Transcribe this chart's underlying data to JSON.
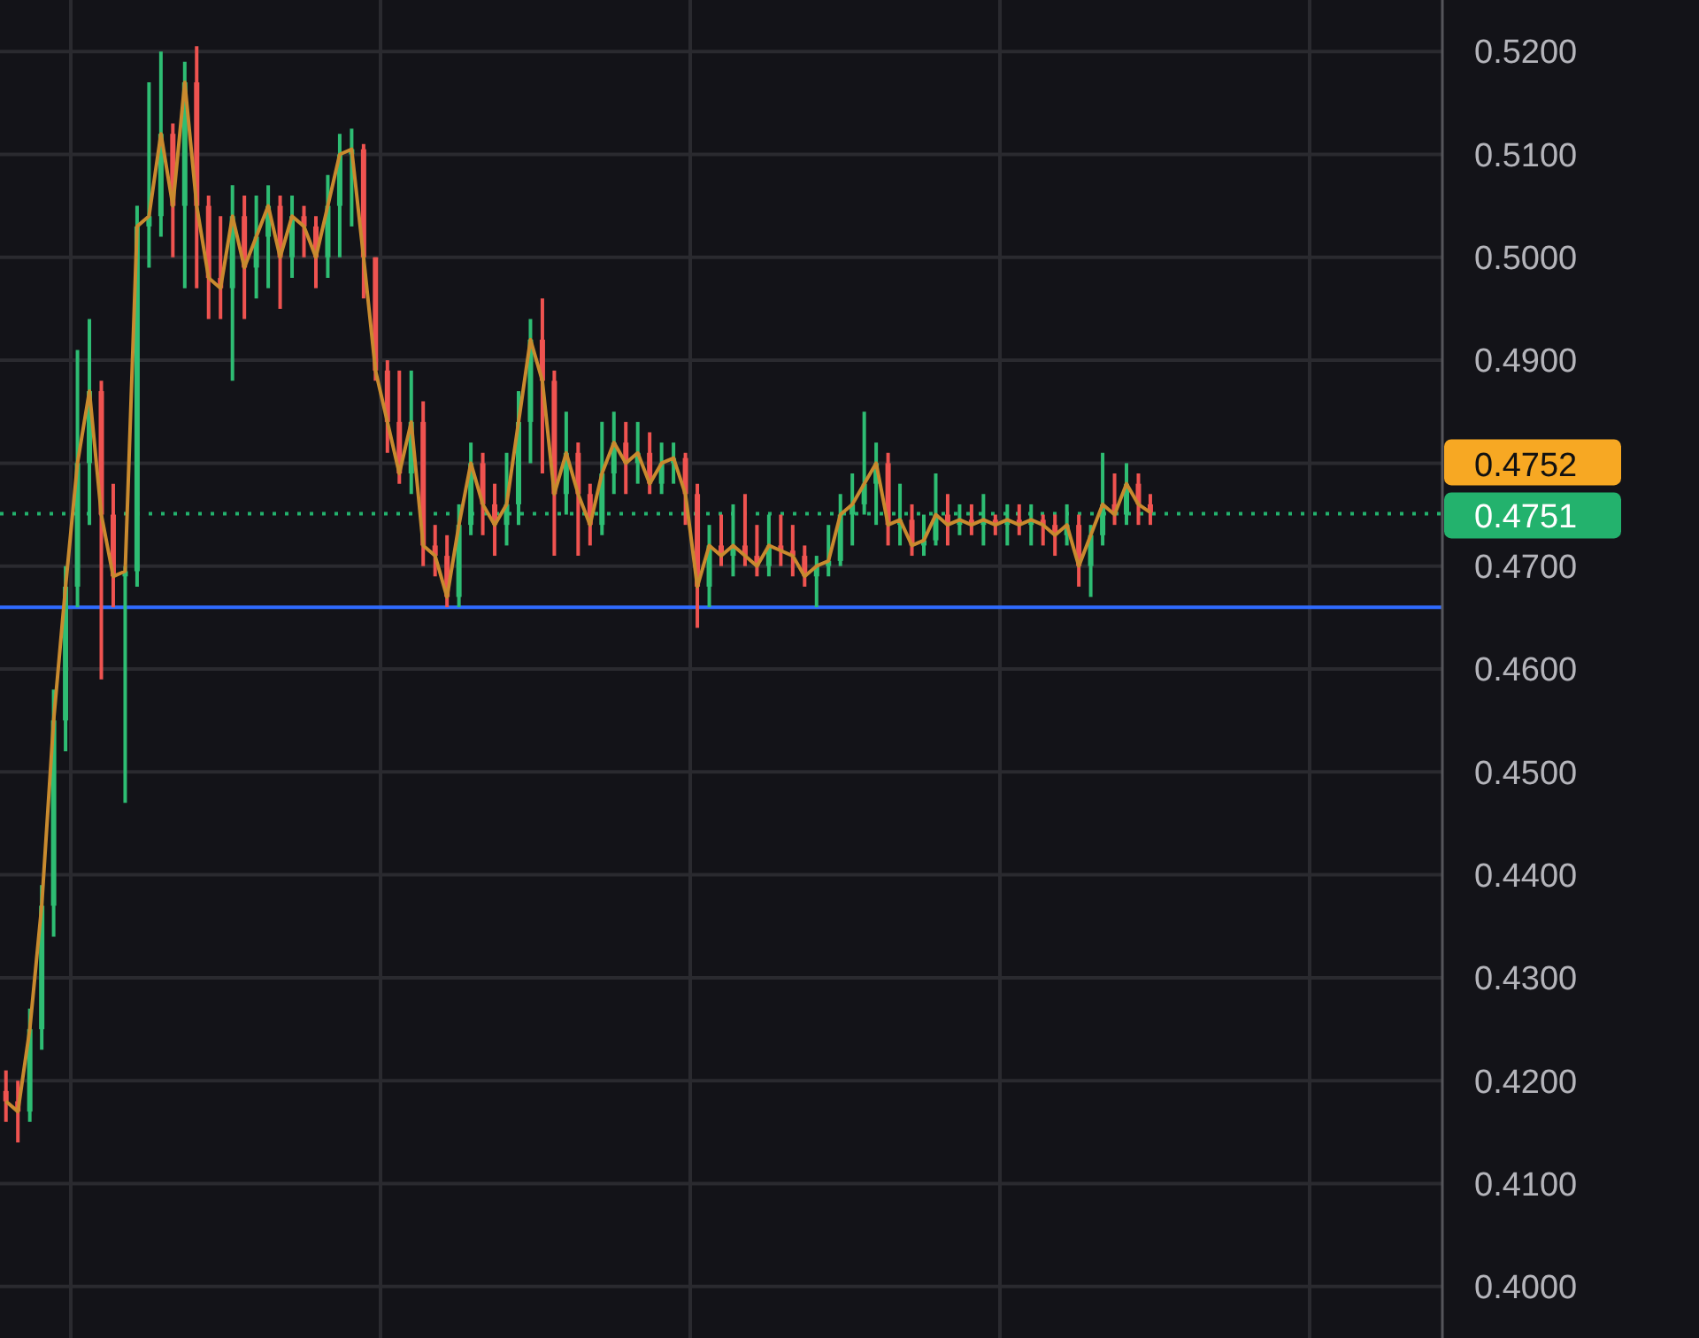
{
  "chart_data": {
    "type": "candlestick",
    "categories": [
      null,
      null,
      null,
      null,
      null,
      null,
      null,
      null,
      null,
      null,
      null,
      null,
      null,
      null,
      null,
      null,
      null,
      null,
      null,
      null,
      null,
      null,
      null,
      null,
      null,
      null,
      null,
      null,
      null,
      null,
      null,
      null,
      null,
      null,
      null,
      null,
      null,
      null,
      null,
      null,
      null,
      null,
      null,
      null,
      null,
      null,
      null,
      null,
      null,
      null,
      null,
      null,
      null,
      null,
      null,
      null,
      null,
      null,
      null,
      null,
      null,
      null,
      null,
      null,
      null,
      null,
      null,
      null,
      null,
      null,
      null,
      null,
      null,
      null,
      null,
      null,
      null,
      null,
      null,
      null,
      null,
      null,
      null,
      null,
      null,
      null,
      null,
      null,
      null,
      null,
      null,
      null,
      null,
      null,
      null,
      null,
      null,
      null,
      null,
      null,
      null,
      null,
      null,
      null,
      null,
      null,
      null,
      null,
      null,
      null,
      null,
      null,
      null,
      null,
      null,
      null,
      null,
      null,
      null,
      null,
      null
    ],
    "ohlc": [
      [
        0.419,
        0.421,
        0.416,
        0.418
      ],
      [
        0.418,
        0.42,
        0.414,
        0.417
      ],
      [
        0.417,
        0.427,
        0.416,
        0.425
      ],
      [
        0.425,
        0.439,
        0.423,
        0.437
      ],
      [
        0.437,
        0.458,
        0.434,
        0.455
      ],
      [
        0.455,
        0.47,
        0.452,
        0.468
      ],
      [
        0.468,
        0.491,
        0.466,
        0.48
      ],
      [
        0.48,
        0.494,
        0.474,
        0.487
      ],
      [
        0.487,
        0.488,
        0.459,
        0.475
      ],
      [
        0.475,
        0.478,
        0.466,
        0.469
      ],
      [
        0.469,
        0.47,
        0.447,
        0.4695
      ],
      [
        0.4695,
        0.505,
        0.468,
        0.503
      ],
      [
        0.503,
        0.517,
        0.499,
        0.504
      ],
      [
        0.504,
        0.52,
        0.502,
        0.512
      ],
      [
        0.512,
        0.513,
        0.5,
        0.505
      ],
      [
        0.505,
        0.519,
        0.497,
        0.517
      ],
      [
        0.517,
        0.5205,
        0.497,
        0.505
      ],
      [
        0.505,
        0.506,
        0.494,
        0.498
      ],
      [
        0.498,
        0.504,
        0.494,
        0.497
      ],
      [
        0.497,
        0.507,
        0.488,
        0.504
      ],
      [
        0.504,
        0.506,
        0.494,
        0.499
      ],
      [
        0.499,
        0.506,
        0.496,
        0.502
      ],
      [
        0.502,
        0.507,
        0.497,
        0.505
      ],
      [
        0.505,
        0.506,
        0.495,
        0.5
      ],
      [
        0.5,
        0.506,
        0.498,
        0.504
      ],
      [
        0.504,
        0.505,
        0.5,
        0.503
      ],
      [
        0.503,
        0.504,
        0.497,
        0.5
      ],
      [
        0.5,
        0.508,
        0.498,
        0.505
      ],
      [
        0.505,
        0.512,
        0.5,
        0.51
      ],
      [
        0.51,
        0.5125,
        0.503,
        0.5105
      ],
      [
        0.5105,
        0.511,
        0.496,
        0.5
      ],
      [
        0.5,
        0.5,
        0.488,
        0.489
      ],
      [
        0.489,
        0.49,
        0.481,
        0.484
      ],
      [
        0.484,
        0.489,
        0.478,
        0.479
      ],
      [
        0.479,
        0.489,
        0.477,
        0.484
      ],
      [
        0.484,
        0.486,
        0.47,
        0.472
      ],
      [
        0.472,
        0.474,
        0.469,
        0.471
      ],
      [
        0.471,
        0.473,
        0.466,
        0.467
      ],
      [
        0.467,
        0.476,
        0.466,
        0.474
      ],
      [
        0.474,
        0.482,
        0.473,
        0.48
      ],
      [
        0.48,
        0.481,
        0.473,
        0.476
      ],
      [
        0.476,
        0.478,
        0.471,
        0.474
      ],
      [
        0.474,
        0.481,
        0.472,
        0.476
      ],
      [
        0.476,
        0.487,
        0.474,
        0.484
      ],
      [
        0.484,
        0.494,
        0.48,
        0.492
      ],
      [
        0.492,
        0.496,
        0.479,
        0.488
      ],
      [
        0.488,
        0.489,
        0.471,
        0.477
      ],
      [
        0.477,
        0.485,
        0.475,
        0.481
      ],
      [
        0.481,
        0.482,
        0.471,
        0.477
      ],
      [
        0.477,
        0.478,
        0.472,
        0.474
      ],
      [
        0.474,
        0.484,
        0.473,
        0.479
      ],
      [
        0.479,
        0.485,
        0.477,
        0.482
      ],
      [
        0.482,
        0.484,
        0.477,
        0.48
      ],
      [
        0.48,
        0.484,
        0.478,
        0.481
      ],
      [
        0.481,
        0.483,
        0.477,
        0.478
      ],
      [
        0.478,
        0.482,
        0.477,
        0.48
      ],
      [
        0.48,
        0.482,
        0.478,
        0.4805
      ],
      [
        0.4805,
        0.481,
        0.474,
        0.477
      ],
      [
        0.477,
        0.478,
        0.464,
        0.468
      ],
      [
        0.468,
        0.474,
        0.466,
        0.472
      ],
      [
        0.472,
        0.475,
        0.47,
        0.471
      ],
      [
        0.471,
        0.476,
        0.469,
        0.472
      ],
      [
        0.472,
        0.477,
        0.47,
        0.471
      ],
      [
        0.471,
        0.474,
        0.469,
        0.47
      ],
      [
        0.47,
        0.475,
        0.469,
        0.472
      ],
      [
        0.472,
        0.475,
        0.47,
        0.4715
      ],
      [
        0.4715,
        0.474,
        0.469,
        0.471
      ],
      [
        0.471,
        0.472,
        0.468,
        0.469
      ],
      [
        0.469,
        0.471,
        0.466,
        0.47
      ],
      [
        0.47,
        0.474,
        0.469,
        0.4705
      ],
      [
        0.4705,
        0.477,
        0.47,
        0.475
      ],
      [
        0.475,
        0.479,
        0.472,
        0.476
      ],
      [
        0.476,
        0.485,
        0.475,
        0.478
      ],
      [
        0.478,
        0.482,
        0.474,
        0.48
      ],
      [
        0.48,
        0.481,
        0.472,
        0.474
      ],
      [
        0.474,
        0.478,
        0.472,
        0.4745
      ],
      [
        0.4745,
        0.476,
        0.471,
        0.472
      ],
      [
        0.472,
        0.475,
        0.471,
        0.4725
      ],
      [
        0.4725,
        0.479,
        0.472,
        0.475
      ],
      [
        0.475,
        0.477,
        0.472,
        0.474
      ],
      [
        0.474,
        0.476,
        0.473,
        0.4745
      ],
      [
        0.4745,
        0.476,
        0.473,
        0.474
      ],
      [
        0.474,
        0.477,
        0.472,
        0.4745
      ],
      [
        0.4745,
        0.475,
        0.473,
        0.474
      ],
      [
        0.474,
        0.476,
        0.472,
        0.4745
      ],
      [
        0.4745,
        0.476,
        0.473,
        0.474
      ],
      [
        0.474,
        0.476,
        0.472,
        0.4745
      ],
      [
        0.4745,
        0.475,
        0.472,
        0.474
      ],
      [
        0.474,
        0.475,
        0.471,
        0.473
      ],
      [
        0.473,
        0.476,
        0.472,
        0.474
      ],
      [
        0.474,
        0.475,
        0.468,
        0.47
      ],
      [
        0.47,
        0.474,
        0.467,
        0.473
      ],
      [
        0.473,
        0.481,
        0.472,
        0.476
      ],
      [
        0.476,
        0.479,
        0.474,
        0.475
      ],
      [
        0.475,
        0.48,
        0.474,
        0.478
      ],
      [
        0.478,
        0.479,
        0.474,
        0.476
      ],
      [
        0.476,
        0.477,
        0.474,
        0.4752
      ],
      null,
      null,
      null,
      null,
      null,
      null,
      null,
      null,
      null,
      null,
      null,
      null,
      null,
      null,
      null,
      null,
      null,
      null,
      null,
      null,
      null,
      null,
      null,
      null
    ],
    "series": [
      {
        "type": "line",
        "color": "#c98a2e",
        "values": [
          0.418,
          0.417,
          0.425,
          0.437,
          0.455,
          0.468,
          0.48,
          0.487,
          0.475,
          0.469,
          0.4695,
          0.503,
          0.504,
          0.512,
          0.505,
          0.517,
          0.505,
          0.498,
          0.497,
          0.504,
          0.499,
          0.502,
          0.505,
          0.5,
          0.504,
          0.503,
          0.5,
          0.505,
          0.51,
          0.5105,
          0.5,
          0.489,
          0.484,
          0.479,
          0.484,
          0.472,
          0.471,
          0.467,
          0.474,
          0.48,
          0.476,
          0.474,
          0.476,
          0.484,
          0.492,
          0.488,
          0.477,
          0.481,
          0.477,
          0.474,
          0.479,
          0.482,
          0.48,
          0.481,
          0.478,
          0.48,
          0.4805,
          0.477,
          0.468,
          0.472,
          0.471,
          0.472,
          0.471,
          0.47,
          0.472,
          0.4715,
          0.471,
          0.469,
          0.47,
          0.4705,
          0.475,
          0.476,
          0.478,
          0.48,
          0.474,
          0.4745,
          0.472,
          0.4725,
          0.475,
          0.474,
          0.4745,
          0.474,
          0.4745,
          0.474,
          0.4745,
          0.474,
          0.4745,
          0.474,
          0.473,
          0.474,
          0.47,
          0.473,
          0.476,
          0.475,
          0.478,
          0.476,
          0.4752,
          null,
          null,
          null,
          null,
          null,
          null,
          null,
          null,
          null,
          null,
          null,
          null,
          null,
          null,
          null,
          null,
          null,
          null,
          null,
          null,
          null,
          null,
          null,
          null
        ]
      }
    ],
    "ylim": [
      0.395,
      0.525
    ],
    "yticks": [
      {
        "value": 0.4,
        "label": "0.4000"
      },
      {
        "value": 0.41,
        "label": "0.4100"
      },
      {
        "value": 0.42,
        "label": "0.4200"
      },
      {
        "value": 0.43,
        "label": "0.4300"
      },
      {
        "value": 0.44,
        "label": "0.4400"
      },
      {
        "value": 0.45,
        "label": "0.4500"
      },
      {
        "value": 0.46,
        "label": "0.4600"
      },
      {
        "value": 0.47,
        "label": "0.4700"
      },
      {
        "value": 0.48,
        "label": null
      },
      {
        "value": 0.49,
        "label": "0.4900"
      },
      {
        "value": 0.5,
        "label": "0.5000"
      },
      {
        "value": 0.51,
        "label": "0.5100"
      },
      {
        "value": 0.52,
        "label": "0.5200"
      }
    ],
    "grid": true,
    "ref_lines": [
      {
        "axis": "y",
        "value": 0.4751,
        "label": "0.4751",
        "color": "#23b26d",
        "line_style": "dotted"
      },
      {
        "axis": "y",
        "value": 0.466,
        "color": "#2f6bff",
        "line_style": "solid"
      }
    ],
    "annotations": [
      "0.4752"
    ]
  }
}
